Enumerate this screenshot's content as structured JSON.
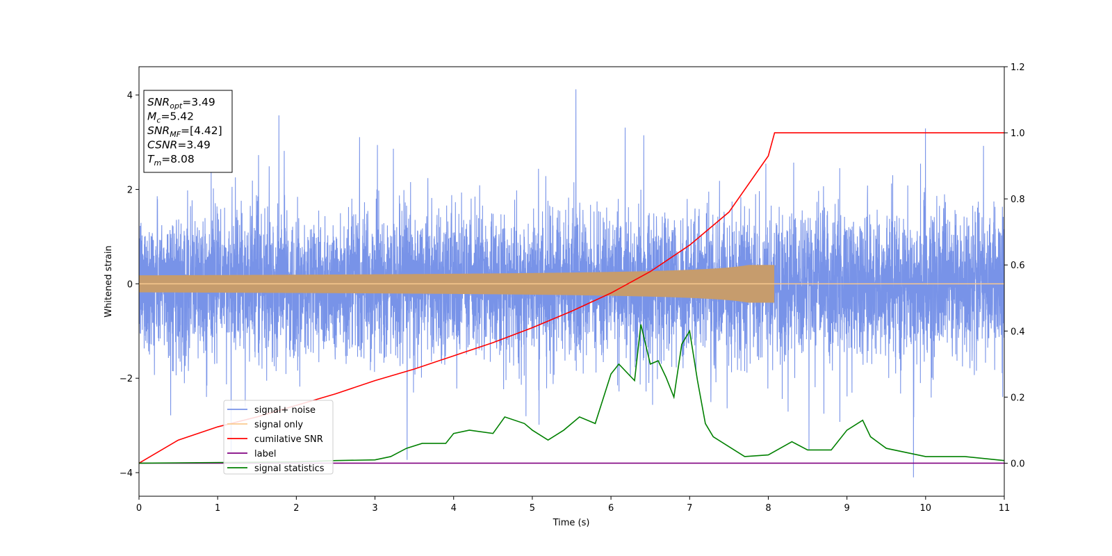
{
  "chart_data": {
    "type": "line",
    "xlabel": "Time (s)",
    "ylabel": "Whitened strain",
    "xlim": [
      0,
      11
    ],
    "ylim": [
      -4.5,
      4.6
    ],
    "ylim_right": [
      -0.1,
      1.2
    ],
    "x_ticks": [
      0,
      1,
      2,
      3,
      4,
      5,
      6,
      7,
      8,
      9,
      10,
      11
    ],
    "y_ticks": [
      -4,
      -2,
      0,
      2,
      4
    ],
    "y_ticks_right": [
      0.0,
      0.2,
      0.4,
      0.6,
      0.8,
      1.0,
      1.2
    ],
    "grid": false,
    "legend_position": "lower-left",
    "annotation": [
      {
        "var": "SNR",
        "sub": "opt",
        "value": "=3.49"
      },
      {
        "var": "M",
        "sub": "c",
        "value": "=5.42"
      },
      {
        "var": "SNR",
        "sub": "MF",
        "value": "=[4.42]"
      },
      {
        "var": "CSNR",
        "sub": "",
        "value": "=3.49"
      },
      {
        "var": "T",
        "sub": "m",
        "value": "=8.08"
      }
    ],
    "series": [
      {
        "name": "signal+ noise",
        "color": "#7893e8",
        "axis": "left",
        "noise_sigma": 0.75,
        "x_range": [
          0,
          11
        ]
      },
      {
        "name": "signal only",
        "color": "#f9c98f",
        "axis": "left",
        "chirp_end": 8.08,
        "peak_amplitude": 0.4
      },
      {
        "name": "cumilative SNR",
        "color": "#ff0000",
        "axis": "right",
        "x": [
          0,
          0.5,
          1,
          1.5,
          2,
          2.5,
          3,
          3.5,
          4,
          4.5,
          5,
          5.5,
          6,
          6.5,
          7,
          7.5,
          8,
          8.08,
          11
        ],
        "y": [
          0.0,
          0.07,
          0.11,
          0.14,
          0.175,
          0.21,
          0.25,
          0.285,
          0.325,
          0.365,
          0.41,
          0.46,
          0.515,
          0.58,
          0.66,
          0.76,
          0.93,
          1.0,
          1.0
        ]
      },
      {
        "name": "label",
        "color": "#800080",
        "axis": "right",
        "x": [
          0,
          11
        ],
        "y": [
          0.0,
          0.0
        ]
      },
      {
        "name": "signal statistics",
        "color": "#008000",
        "axis": "right",
        "x": [
          0,
          1,
          2,
          2.5,
          3,
          3.2,
          3.4,
          3.6,
          3.9,
          4.0,
          4.2,
          4.5,
          4.65,
          4.9,
          5.0,
          5.2,
          5.4,
          5.6,
          5.8,
          6.0,
          6.1,
          6.3,
          6.38,
          6.5,
          6.6,
          6.7,
          6.8,
          6.9,
          7.0,
          7.1,
          7.2,
          7.3,
          7.5,
          7.7,
          8.0,
          8.3,
          8.5,
          8.8,
          9.0,
          9.2,
          9.3,
          9.5,
          10.0,
          10.5,
          11
        ],
        "y": [
          0.0,
          0.002,
          0.004,
          0.008,
          0.01,
          0.02,
          0.045,
          0.06,
          0.06,
          0.09,
          0.1,
          0.09,
          0.14,
          0.12,
          0.1,
          0.07,
          0.1,
          0.14,
          0.12,
          0.27,
          0.3,
          0.25,
          0.42,
          0.3,
          0.31,
          0.26,
          0.2,
          0.36,
          0.4,
          0.25,
          0.12,
          0.08,
          0.05,
          0.02,
          0.025,
          0.065,
          0.04,
          0.04,
          0.1,
          0.13,
          0.08,
          0.045,
          0.02,
          0.02,
          0.008
        ]
      }
    ]
  }
}
